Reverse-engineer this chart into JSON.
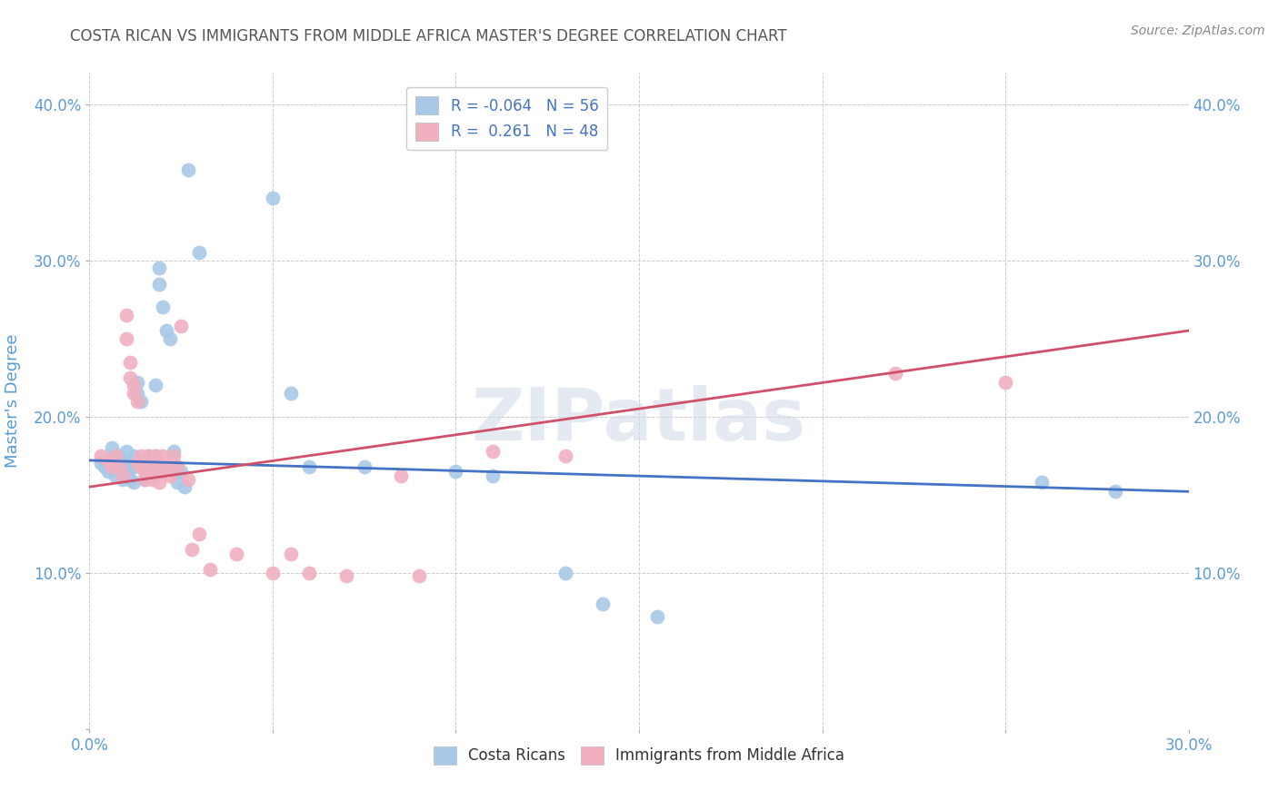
{
  "title": "COSTA RICAN VS IMMIGRANTS FROM MIDDLE AFRICA MASTER'S DEGREE CORRELATION CHART",
  "source": "Source: ZipAtlas.com",
  "ylabel": "Master's Degree",
  "watermark": "ZIPatlas",
  "xlim": [
    0.0,
    0.3
  ],
  "ylim": [
    0.0,
    0.42
  ],
  "xticks": [
    0.0,
    0.05,
    0.1,
    0.15,
    0.2,
    0.25,
    0.3
  ],
  "yticks": [
    0.0,
    0.1,
    0.2,
    0.3,
    0.4
  ],
  "left_ytick_labels": [
    "",
    "10.0%",
    "20.0%",
    "30.0%",
    "40.0%"
  ],
  "right_ytick_labels": [
    "",
    "10.0%",
    "20.0%",
    "30.0%",
    "40.0%"
  ],
  "xtick_labels": [
    "0.0%",
    "",
    "",
    "",
    "",
    "",
    "30.0%"
  ],
  "legend_r1": "R = -0.064",
  "legend_n1": "N = 56",
  "legend_r2": "R =  0.261",
  "legend_n2": "N = 48",
  "color_blue": "#a8c8e8",
  "color_pink": "#f0b0c0",
  "line_color_blue": "#4472c4",
  "line_color_pink": "#d0506a",
  "blue_scatter": [
    [
      0.003,
      0.17
    ],
    [
      0.004,
      0.168
    ],
    [
      0.005,
      0.172
    ],
    [
      0.005,
      0.165
    ],
    [
      0.006,
      0.18
    ],
    [
      0.006,
      0.168
    ],
    [
      0.007,
      0.175
    ],
    [
      0.007,
      0.162
    ],
    [
      0.008,
      0.175
    ],
    [
      0.008,
      0.168
    ],
    [
      0.009,
      0.17
    ],
    [
      0.009,
      0.16
    ],
    [
      0.01,
      0.178
    ],
    [
      0.01,
      0.17
    ],
    [
      0.01,
      0.162
    ],
    [
      0.011,
      0.168
    ],
    [
      0.011,
      0.16
    ],
    [
      0.012,
      0.175
    ],
    [
      0.012,
      0.168
    ],
    [
      0.012,
      0.158
    ],
    [
      0.013,
      0.222
    ],
    [
      0.013,
      0.215
    ],
    [
      0.014,
      0.21
    ],
    [
      0.014,
      0.168
    ],
    [
      0.015,
      0.168
    ],
    [
      0.015,
      0.16
    ],
    [
      0.016,
      0.175
    ],
    [
      0.016,
      0.168
    ],
    [
      0.017,
      0.172
    ],
    [
      0.017,
      0.165
    ],
    [
      0.018,
      0.22
    ],
    [
      0.018,
      0.175
    ],
    [
      0.019,
      0.295
    ],
    [
      0.019,
      0.285
    ],
    [
      0.02,
      0.27
    ],
    [
      0.021,
      0.255
    ],
    [
      0.022,
      0.25
    ],
    [
      0.023,
      0.178
    ],
    [
      0.023,
      0.165
    ],
    [
      0.024,
      0.168
    ],
    [
      0.024,
      0.158
    ],
    [
      0.025,
      0.165
    ],
    [
      0.026,
      0.155
    ],
    [
      0.027,
      0.358
    ],
    [
      0.03,
      0.305
    ],
    [
      0.05,
      0.34
    ],
    [
      0.055,
      0.215
    ],
    [
      0.06,
      0.168
    ],
    [
      0.075,
      0.168
    ],
    [
      0.1,
      0.165
    ],
    [
      0.11,
      0.162
    ],
    [
      0.13,
      0.1
    ],
    [
      0.14,
      0.08
    ],
    [
      0.155,
      0.072
    ],
    [
      0.26,
      0.158
    ],
    [
      0.28,
      0.152
    ]
  ],
  "pink_scatter": [
    [
      0.003,
      0.175
    ],
    [
      0.005,
      0.172
    ],
    [
      0.006,
      0.168
    ],
    [
      0.007,
      0.175
    ],
    [
      0.008,
      0.168
    ],
    [
      0.009,
      0.162
    ],
    [
      0.01,
      0.265
    ],
    [
      0.01,
      0.25
    ],
    [
      0.011,
      0.235
    ],
    [
      0.011,
      0.225
    ],
    [
      0.012,
      0.22
    ],
    [
      0.012,
      0.215
    ],
    [
      0.013,
      0.21
    ],
    [
      0.013,
      0.17
    ],
    [
      0.014,
      0.175
    ],
    [
      0.014,
      0.168
    ],
    [
      0.015,
      0.165
    ],
    [
      0.015,
      0.16
    ],
    [
      0.016,
      0.175
    ],
    [
      0.016,
      0.165
    ],
    [
      0.017,
      0.168
    ],
    [
      0.017,
      0.16
    ],
    [
      0.018,
      0.175
    ],
    [
      0.018,
      0.165
    ],
    [
      0.019,
      0.168
    ],
    [
      0.019,
      0.158
    ],
    [
      0.02,
      0.175
    ],
    [
      0.02,
      0.165
    ],
    [
      0.021,
      0.168
    ],
    [
      0.022,
      0.162
    ],
    [
      0.023,
      0.175
    ],
    [
      0.024,
      0.168
    ],
    [
      0.025,
      0.258
    ],
    [
      0.027,
      0.16
    ],
    [
      0.028,
      0.115
    ],
    [
      0.03,
      0.125
    ],
    [
      0.033,
      0.102
    ],
    [
      0.04,
      0.112
    ],
    [
      0.05,
      0.1
    ],
    [
      0.055,
      0.112
    ],
    [
      0.06,
      0.1
    ],
    [
      0.07,
      0.098
    ],
    [
      0.085,
      0.162
    ],
    [
      0.09,
      0.098
    ],
    [
      0.11,
      0.178
    ],
    [
      0.13,
      0.175
    ],
    [
      0.22,
      0.228
    ],
    [
      0.25,
      0.222
    ]
  ],
  "background_color": "#ffffff",
  "grid_color": "#cccccc",
  "title_color": "#333333",
  "axis_label_color": "#5b9bd5",
  "tick_color": "#5b9bd5",
  "legend1_label": "Costa Ricans",
  "legend2_label": "Immigrants from Middle Africa"
}
